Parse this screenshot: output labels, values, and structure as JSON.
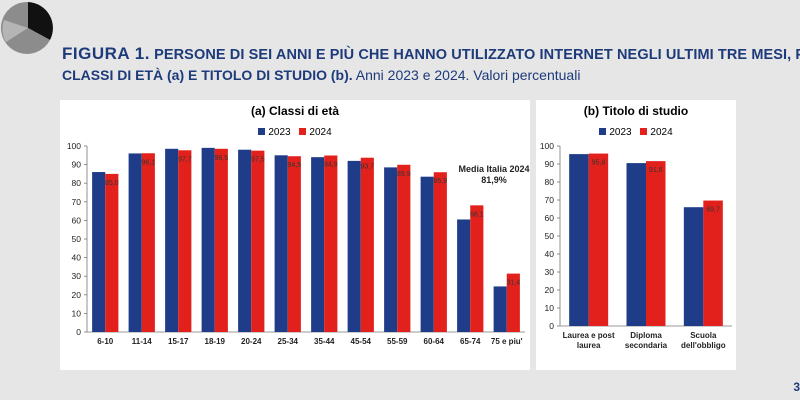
{
  "colors": {
    "series_2023": "#1f3c88",
    "series_2024": "#e3211c",
    "title": "#1d3a7a"
  },
  "header": {
    "fig_label": "FIGURA 1.",
    "title": " PERSONE DI SEI ANNI E PIÙ CHE HANNO UTILIZZATO INTERNET NEGLI ULTIMI TRE MESI, PER",
    "title_cont": "CLASSI DI ETÀ (a) E TITOLO DI STUDIO (b).",
    "subtitle": " Anni 2023 e 2024. Valori percentuali"
  },
  "page_number": "3",
  "chart_data": [
    {
      "type": "bar",
      "title": "(a) Classi di età",
      "categories": [
        "6-10",
        "11-14",
        "15-17",
        "18-19",
        "20-24",
        "25-34",
        "35-44",
        "45-54",
        "55-59",
        "60-64",
        "65-74",
        "75 e piu'"
      ],
      "series": [
        {
          "name": "2023",
          "values": [
            86.0,
            96.0,
            98.5,
            99.0,
            98.0,
            95.0,
            94.0,
            92.0,
            88.5,
            83.5,
            60.5,
            24.5
          ],
          "labels": [
            "",
            "",
            "",
            "",
            "",
            "",
            "",
            "",
            "",
            "",
            "",
            ""
          ]
        },
        {
          "name": "2024",
          "values": [
            85.0,
            96.1,
            97.7,
            98.5,
            97.5,
            94.5,
            94.9,
            93.7,
            89.9,
            85.9,
            68.1,
            31.4
          ],
          "labels": [
            "85,0",
            "96,1",
            "97,7",
            "98,5",
            "97,5",
            "94,5",
            "94,9",
            "93,7",
            "89,9",
            "85,9",
            "68,1",
            "31,4"
          ]
        }
      ],
      "ylim": [
        0,
        100
      ],
      "ticks": [
        0,
        10,
        20,
        30,
        40,
        50,
        60,
        70,
        80,
        90,
        100
      ],
      "annotation": {
        "line1": "Media Italia 2024",
        "line2": "81,9%"
      }
    },
    {
      "type": "bar",
      "title": "(b) Titolo di studio",
      "categories": [
        [
          "Laurea e post",
          "laurea"
        ],
        [
          "Diploma",
          "secondaria"
        ],
        [
          "Scuola",
          "dell'obbligo"
        ]
      ],
      "series": [
        {
          "name": "2023",
          "values": [
            95.5,
            90.5,
            66.0
          ],
          "labels": [
            "",
            "",
            ""
          ]
        },
        {
          "name": "2024",
          "values": [
            95.8,
            91.6,
            69.7
          ],
          "labels": [
            "95,8",
            "91,6",
            "69,7"
          ]
        }
      ],
      "ylim": [
        0,
        100
      ],
      "ticks": [
        0,
        10,
        20,
        30,
        40,
        50,
        60,
        70,
        80,
        90,
        100
      ]
    }
  ]
}
